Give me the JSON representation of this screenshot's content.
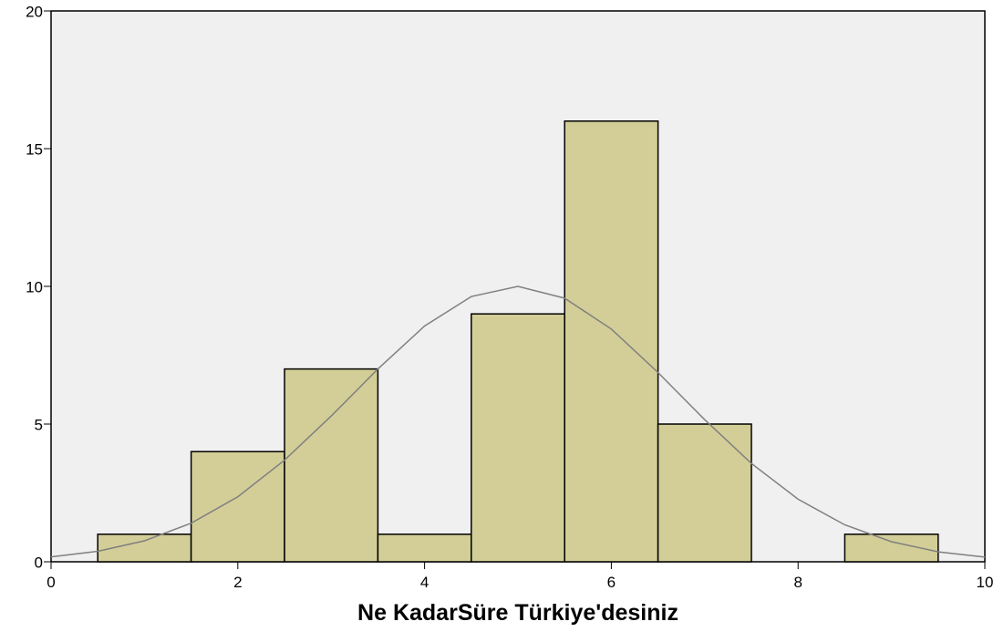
{
  "chart_data": {
    "type": "histogram",
    "x_label": "Ne KadarSüre Türkiye'desiniz",
    "bins": [
      0.5,
      1.5,
      2.5,
      3.5,
      4.5,
      5.5,
      6.5,
      7.5,
      8.5,
      9.5
    ],
    "counts": [
      1,
      4,
      7,
      1,
      9,
      16,
      5,
      0,
      1
    ],
    "color": "#d3ce97",
    "curve": {
      "color": "#808080",
      "x": [
        0,
        0.5,
        1,
        1.5,
        2,
        2.5,
        3,
        3.5,
        4,
        4.5,
        5,
        5.5,
        6,
        6.5,
        7,
        7.5,
        8,
        8.5,
        9,
        9.5,
        10
      ],
      "values": [
        0.18,
        0.38,
        0.76,
        1.4,
        2.36,
        3.69,
        5.29,
        7.0,
        8.56,
        9.63,
        10,
        9.57,
        8.45,
        6.87,
        5.16,
        3.57,
        2.27,
        1.34,
        0.73,
        0.36,
        0.17
      ]
    },
    "xlim": [
      0,
      10
    ],
    "xticks": [
      0,
      2,
      4,
      6,
      8,
      10
    ],
    "ylim": [
      0,
      20
    ],
    "yticks": [
      0,
      5,
      10,
      15,
      20
    ]
  }
}
